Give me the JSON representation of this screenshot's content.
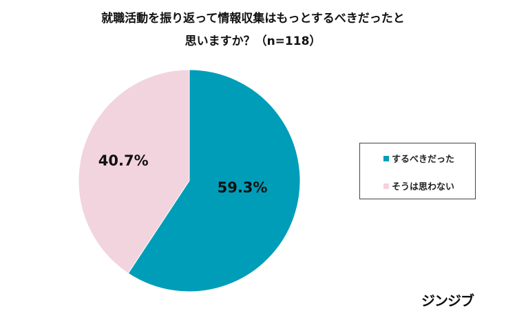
{
  "chart_data": {
    "type": "pie",
    "title": [
      "就職活動を振り返って情報収集はもっとするべきだったと",
      "思いますか？（n=118）"
    ],
    "categories": [
      "するべきだった",
      "そうは思わない"
    ],
    "values": [
      59.3,
      40.7
    ],
    "labels": [
      "59.3%",
      "40.7%"
    ],
    "colors": [
      "#009db9",
      "#f2d4de"
    ],
    "legend_position": "right"
  },
  "logo": "ジンジブ"
}
